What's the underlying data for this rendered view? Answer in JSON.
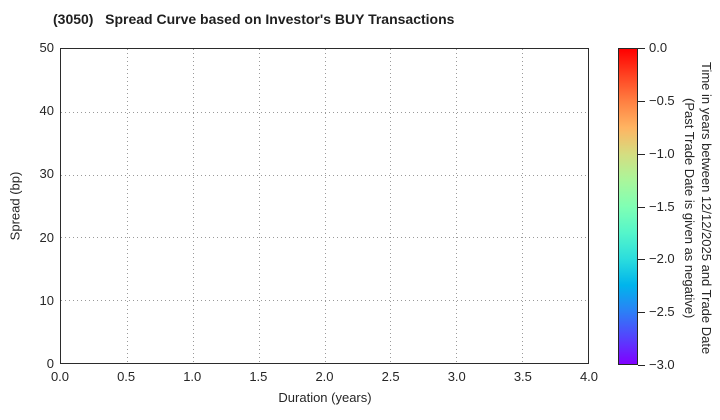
{
  "title": "(3050)   Spread Curve based on Investor's BUY Transactions",
  "axes": {
    "xlabel": "Duration (years)",
    "ylabel": "Spread (bp)"
  },
  "chart_data": {
    "type": "scatter",
    "title": "(3050)   Spread Curve based on Investor's BUY Transactions",
    "xlabel": "Duration (years)",
    "ylabel": "Spread (bp)",
    "xlim": [
      0.0,
      4.0
    ],
    "ylim": [
      0,
      50
    ],
    "x_ticks": [
      0.0,
      0.5,
      1.0,
      1.5,
      2.0,
      2.5,
      3.0,
      3.5,
      4.0
    ],
    "x_tick_labels": [
      "0.0",
      "0.5",
      "1.0",
      "1.5",
      "2.0",
      "2.5",
      "3.0",
      "3.5",
      "4.0"
    ],
    "y_ticks": [
      0,
      10,
      20,
      30,
      40,
      50
    ],
    "y_tick_labels": [
      "0",
      "10",
      "20",
      "30",
      "40",
      "50"
    ],
    "grid": "dotted",
    "legend": "none",
    "series": [],
    "points_plotted": 0,
    "colorbar": {
      "label_lines": [
        "Time in years between 12/12/2025 and Trade Date",
        "(Past Trade Date is given as negative)"
      ],
      "tick_labels": [
        "0.0",
        "−0.5",
        "−1.0",
        "−1.5",
        "−2.0",
        "−2.5",
        "−3.0"
      ],
      "vmax_top": 0.0,
      "vmin_bottom": -3.0,
      "colormap": "rainbow (red top to violet bottom)",
      "gradient_stops": [
        "#ff0000",
        "#ff4221",
        "#ff8042",
        "#ffb462",
        "#d5dd80",
        "#aaf69b",
        "#80ffb4",
        "#55f6ca",
        "#2bdddd",
        "#00b4ec",
        "#2b80f6",
        "#5542fd",
        "#8000ff"
      ]
    }
  }
}
